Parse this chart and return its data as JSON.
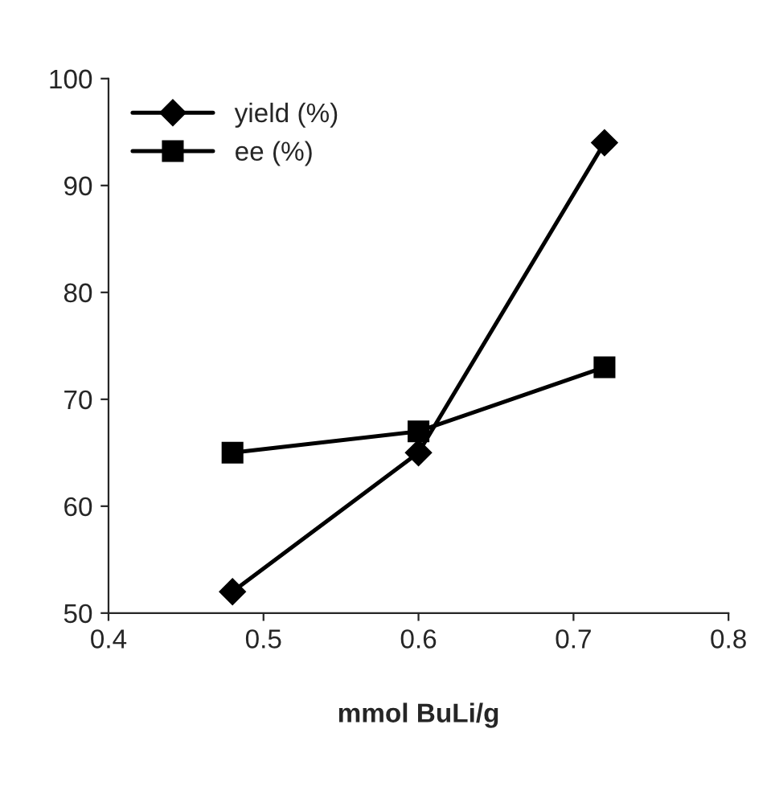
{
  "chart_data": {
    "type": "line",
    "xlabel": "mmol BuLi/g",
    "x": [
      0.48,
      0.6,
      0.72
    ],
    "series": [
      {
        "name": "yield (%)",
        "color": "#000000",
        "marker": "diamond",
        "values": [
          52,
          65,
          94
        ]
      },
      {
        "name": "ee (%)",
        "color": "#000000",
        "marker": "square",
        "values": [
          65,
          67,
          73
        ]
      }
    ],
    "xlim": [
      0.4,
      0.8
    ],
    "xticks": [
      0.4,
      0.5,
      0.6,
      0.7,
      0.8
    ],
    "ylim": [
      50,
      100
    ],
    "yticks": [
      50,
      60,
      70,
      80,
      90,
      100
    ],
    "grid": false,
    "legend": "top left",
    "line_style": "solid"
  }
}
